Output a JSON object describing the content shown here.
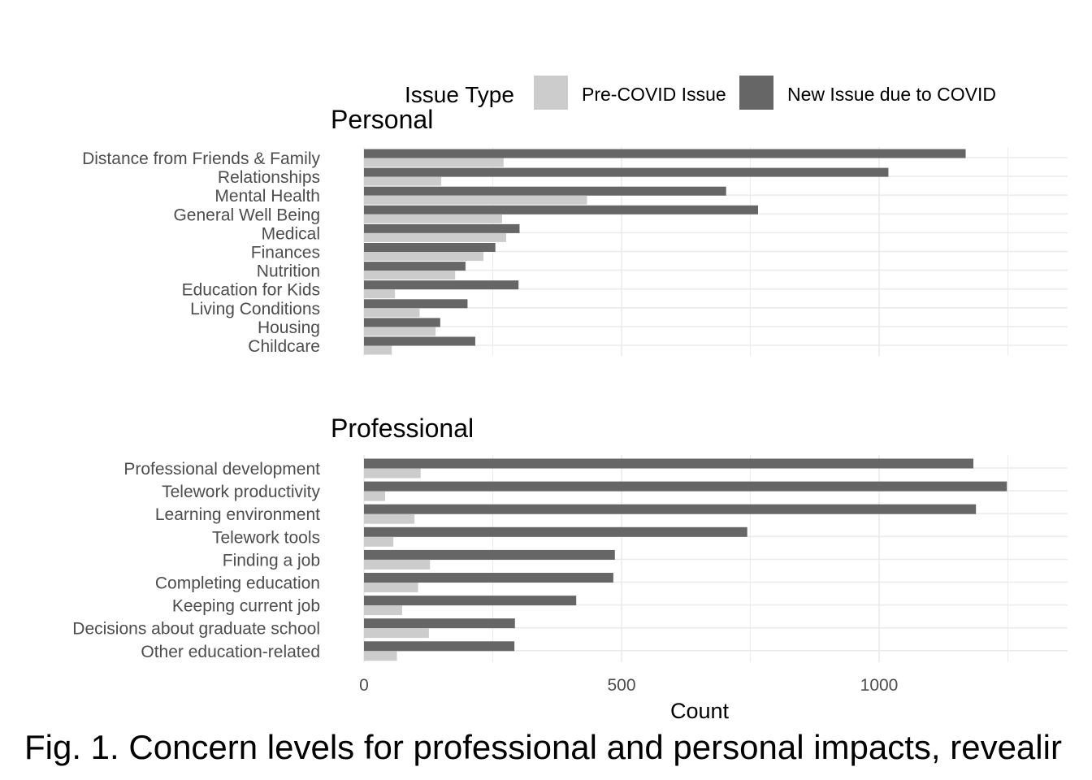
{
  "legend": {
    "title": "Issue Type",
    "position": "top",
    "items": [
      {
        "label": "Pre-COVID Issue",
        "color": "#cccccc"
      },
      {
        "label": "New Issue due to COVID",
        "color": "#666666"
      }
    ]
  },
  "caption": "Fig. 1. Concern levels for professional and personal impacts, revealir",
  "chart_data": [
    {
      "type": "bar",
      "orientation": "horizontal",
      "title": "Personal",
      "categories": [
        "Distance from Friends & Family",
        "Relationships",
        "Mental Health",
        "General Well Being",
        "Medical",
        "Finances",
        "Nutrition",
        "Education for Kids",
        "Living Conditions",
        "Housing",
        "Childcare"
      ],
      "series": [
        {
          "name": "New Issue due to COVID",
          "color": "#666666",
          "values": [
            1168,
            1018,
            703,
            765,
            302,
            255,
            197,
            300,
            201,
            148,
            216
          ]
        },
        {
          "name": "Pre-COVID Issue",
          "color": "#cccccc",
          "values": [
            271,
            150,
            433,
            268,
            276,
            232,
            177,
            60,
            108,
            139,
            54
          ]
        }
      ],
      "xlim": [
        0,
        1370
      ],
      "grid": true
    },
    {
      "type": "bar",
      "orientation": "horizontal",
      "title": "Professional",
      "categories": [
        "Professional development",
        "Telework productivity",
        "Learning environment",
        "Telework tools",
        "Finding a job",
        "Completing education",
        "Keeping current job",
        "Decisions about graduate school",
        "Other education-related"
      ],
      "series": [
        {
          "name": "New Issue due to COVID",
          "color": "#666666",
          "values": [
            1183,
            1248,
            1188,
            744,
            487,
            484,
            412,
            293,
            292
          ]
        },
        {
          "name": "Pre-COVID Issue",
          "color": "#cccccc",
          "values": [
            110,
            41,
            98,
            57,
            128,
            105,
            74,
            126,
            64
          ]
        }
      ],
      "xlabel": "Count",
      "xticks": [
        0,
        500,
        1000
      ],
      "xlim": [
        0,
        1370
      ],
      "grid": true
    }
  ]
}
